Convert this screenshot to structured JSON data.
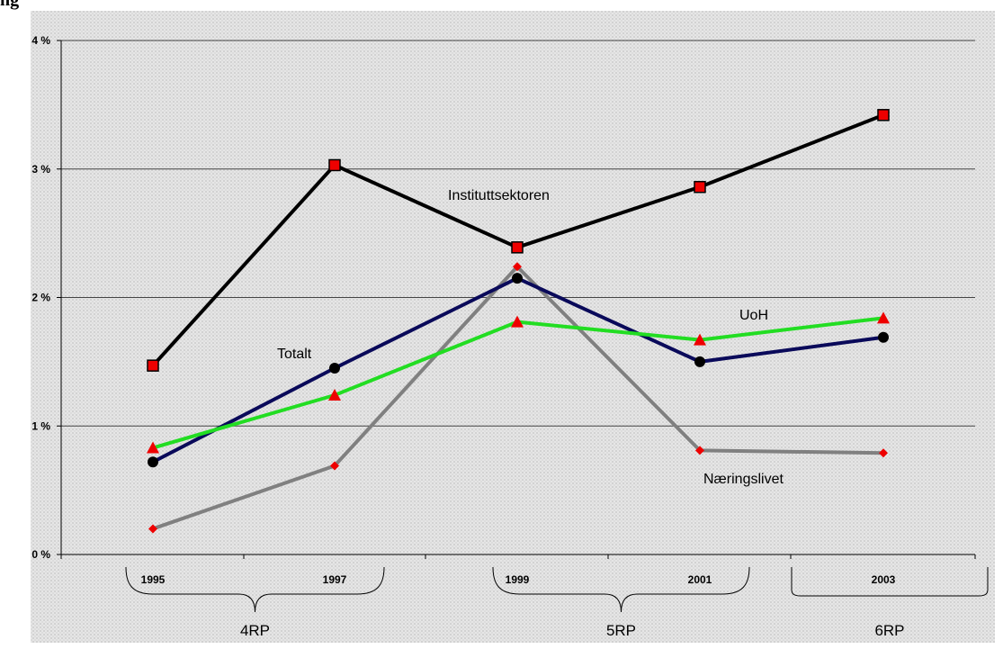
{
  "heading_fragment": "ng",
  "chart_data": {
    "type": "line",
    "x": [
      1995,
      1997,
      1999,
      2001,
      2003
    ],
    "ylim": [
      0,
      4
    ],
    "y_ticks": [
      "0 %",
      "1 %",
      "2 %",
      "3 %",
      "4 %"
    ],
    "x_tick_labels": [
      "1995",
      "1997",
      "1999",
      "2001",
      "2003"
    ],
    "grid": true,
    "series": [
      {
        "name": "Instituttsektoren",
        "color": "#000000",
        "marker": "square",
        "values": [
          1.47,
          3.03,
          2.39,
          2.86,
          3.42
        ]
      },
      {
        "name": "Totalt",
        "color": "#0a0a5a",
        "marker": "circle",
        "values": [
          0.72,
          1.45,
          2.15,
          1.5,
          1.69
        ]
      },
      {
        "name": "UoH",
        "color": "#22dd22",
        "marker": "triangle",
        "values": [
          0.83,
          1.24,
          1.81,
          1.67,
          1.84
        ]
      },
      {
        "name": "Næringslivet",
        "color": "#808080",
        "marker": "diamond",
        "values": [
          0.2,
          0.69,
          2.24,
          0.81,
          0.79
        ]
      }
    ],
    "marker_fill": "#ee0000",
    "periods": [
      {
        "label": "4RP",
        "from": "1995",
        "to": "1997"
      },
      {
        "label": "5RP",
        "from": "1999",
        "to": "2001"
      },
      {
        "label": "6RP",
        "from": "2003",
        "to": "2003"
      }
    ]
  }
}
